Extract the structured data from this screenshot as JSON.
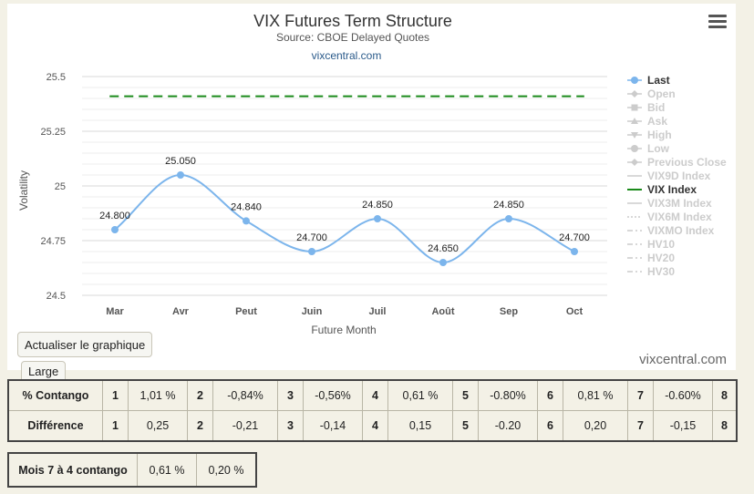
{
  "chart_data": {
    "type": "line",
    "title": "VIX Futures Term Structure",
    "subtitle": "Source: CBOE Delayed Quotes",
    "subtitle_link": "vixcentral.com",
    "credit": "vixcentral.com",
    "xlabel": "Future Month",
    "ylabel": "Volatility",
    "categories": [
      "Mar",
      "Avr",
      "Peut",
      "Juin",
      "Juil",
      "Août",
      "Sep",
      "Oct"
    ],
    "ylim": [
      24.5,
      25.5
    ],
    "yticks": [
      "25.5",
      "25.25",
      "25",
      "24.75",
      "24.5"
    ],
    "ytick_values": [
      25.5,
      25.25,
      25,
      24.75,
      24.5
    ],
    "grid": true,
    "legend_position": "right",
    "series": [
      {
        "name": "Last",
        "values": [
          24.8,
          25.05,
          24.84,
          24.7,
          24.85,
          24.65,
          24.85,
          24.7
        ],
        "labels": [
          "24.800",
          "25.050",
          "24.840",
          "24.700",
          "24.850",
          "24.650",
          "24.850",
          "24.700"
        ],
        "color": "#7cb5ec",
        "style": "solid-spline"
      },
      {
        "name": "VIX Index",
        "values": [
          25.41,
          25.41,
          25.41,
          25.41,
          25.41,
          25.41,
          25.41,
          25.41
        ],
        "color": "#1a8a1a",
        "style": "dashed"
      }
    ],
    "legend": [
      {
        "label": "Last",
        "active": true,
        "symbol": "circle"
      },
      {
        "label": "Open",
        "active": false,
        "symbol": "diamond"
      },
      {
        "label": "Bid",
        "active": false,
        "symbol": "square"
      },
      {
        "label": "Ask",
        "active": false,
        "symbol": "triangle"
      },
      {
        "label": "High",
        "active": false,
        "symbol": "triangle-down"
      },
      {
        "label": "Low",
        "active": false,
        "symbol": "circle"
      },
      {
        "label": "Previous Close",
        "active": false,
        "symbol": "diamond"
      },
      {
        "label": "VIX9D Index",
        "active": false,
        "symbol": "line"
      },
      {
        "label": "VIX Index",
        "active": true,
        "symbol": "line",
        "color": "#1a8a1a"
      },
      {
        "label": "VIX3M Index",
        "active": false,
        "symbol": "line"
      },
      {
        "label": "VIX6M Index",
        "active": false,
        "symbol": "dotted"
      },
      {
        "label": "VIXMO Index",
        "active": false,
        "symbol": "dashdot"
      },
      {
        "label": "HV10",
        "active": false,
        "symbol": "dashdot"
      },
      {
        "label": "HV20",
        "active": false,
        "symbol": "dashdot"
      },
      {
        "label": "HV30",
        "active": false,
        "symbol": "dashdot"
      }
    ]
  },
  "controls": {
    "refresh_label": "Actualiser le graphique",
    "large_label": "Large"
  },
  "table": {
    "rows": [
      {
        "label": "% Contango",
        "cells": [
          [
            "1",
            "1,01 %"
          ],
          [
            "2",
            "-0,84%"
          ],
          [
            "3",
            "-0,56%"
          ],
          [
            "4",
            "0,61 %"
          ],
          [
            "5",
            "-0.80%"
          ],
          [
            "6",
            "0,81 %"
          ],
          [
            "7",
            "-0.60%"
          ]
        ],
        "end": "8"
      },
      {
        "label": "Différence",
        "cells": [
          [
            "1",
            "0,25"
          ],
          [
            "2",
            "-0,21"
          ],
          [
            "3",
            "-0,14"
          ],
          [
            "4",
            "0,15"
          ],
          [
            "5",
            "-0.20"
          ],
          [
            "6",
            "0,20"
          ],
          [
            "7",
            "-0,15"
          ]
        ],
        "end": "8"
      }
    ]
  },
  "mois": {
    "label": "Mois 7 à 4 contango",
    "values": [
      "0,61 %",
      "0,20 %"
    ]
  },
  "colors": {
    "last": "#7cb5ec",
    "vix": "#1a8a1a",
    "legend_inactive": "#cccccc",
    "legend_active": "#333333"
  }
}
